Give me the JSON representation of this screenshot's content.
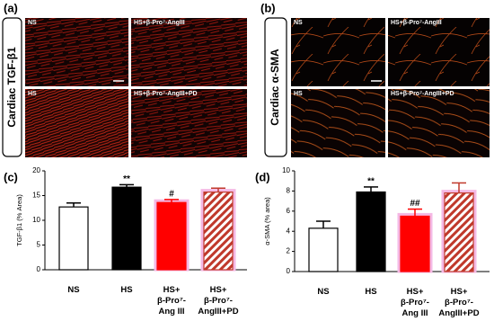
{
  "panels": [
    {
      "label": "(a)",
      "title": "Cardiac TGF-β1",
      "images": [
        "NS",
        "HS+β-Pro⁷-AngIII",
        "HS",
        "HS+β-Pro⁷-AngIII+PD"
      ]
    },
    {
      "label": "(b)",
      "title": "Cardiac α-SMA",
      "images": [
        "NS",
        "HS+β-Pro⁷-AngIII",
        "HS",
        "HS+β-Pro⁷-AngIII+PD"
      ]
    }
  ],
  "chart_data": [
    {
      "type": "bar",
      "panel_label": "(c)",
      "y_label": "TGF-β1 (% Area)",
      "categories": [
        "NS",
        "HS",
        "HS+\nβ-Pro⁷-\nAng III",
        "HS+\nβ-Pro⁷-\nAngIII+PD"
      ],
      "values": [
        12.7,
        16.7,
        13.6,
        15.7
      ],
      "errors": [
        0.8,
        0.5,
        0.6,
        0.8
      ],
      "annotations": [
        null,
        "**",
        "#",
        null
      ],
      "colors": [
        "#ffffff",
        "#000000",
        "#ff0000",
        "#c0392b"
      ],
      "hatch": [
        false,
        false,
        false,
        true
      ],
      "ylim": [
        0,
        20
      ],
      "yticks": [
        0,
        5,
        10,
        15,
        20
      ]
    },
    {
      "type": "bar",
      "panel_label": "(d)",
      "y_label": "α-SMA (% area)",
      "categories": [
        "NS",
        "HS",
        "HS+\nβ-Pro⁷-\nAng III",
        "HS+\nβ-Pro⁷-\nAngIII+PD"
      ],
      "values": [
        4.3,
        7.9,
        5.5,
        7.8
      ],
      "errors": [
        0.7,
        0.5,
        0.7,
        1.0
      ],
      "annotations": [
        null,
        "**",
        "##",
        null
      ],
      "colors": [
        "#ffffff",
        "#000000",
        "#ff0000",
        "#c0392b"
      ],
      "hatch": [
        false,
        false,
        false,
        true
      ],
      "ylim": [
        0,
        10
      ],
      "yticks": [
        0,
        2,
        4,
        6,
        8,
        10
      ]
    }
  ]
}
